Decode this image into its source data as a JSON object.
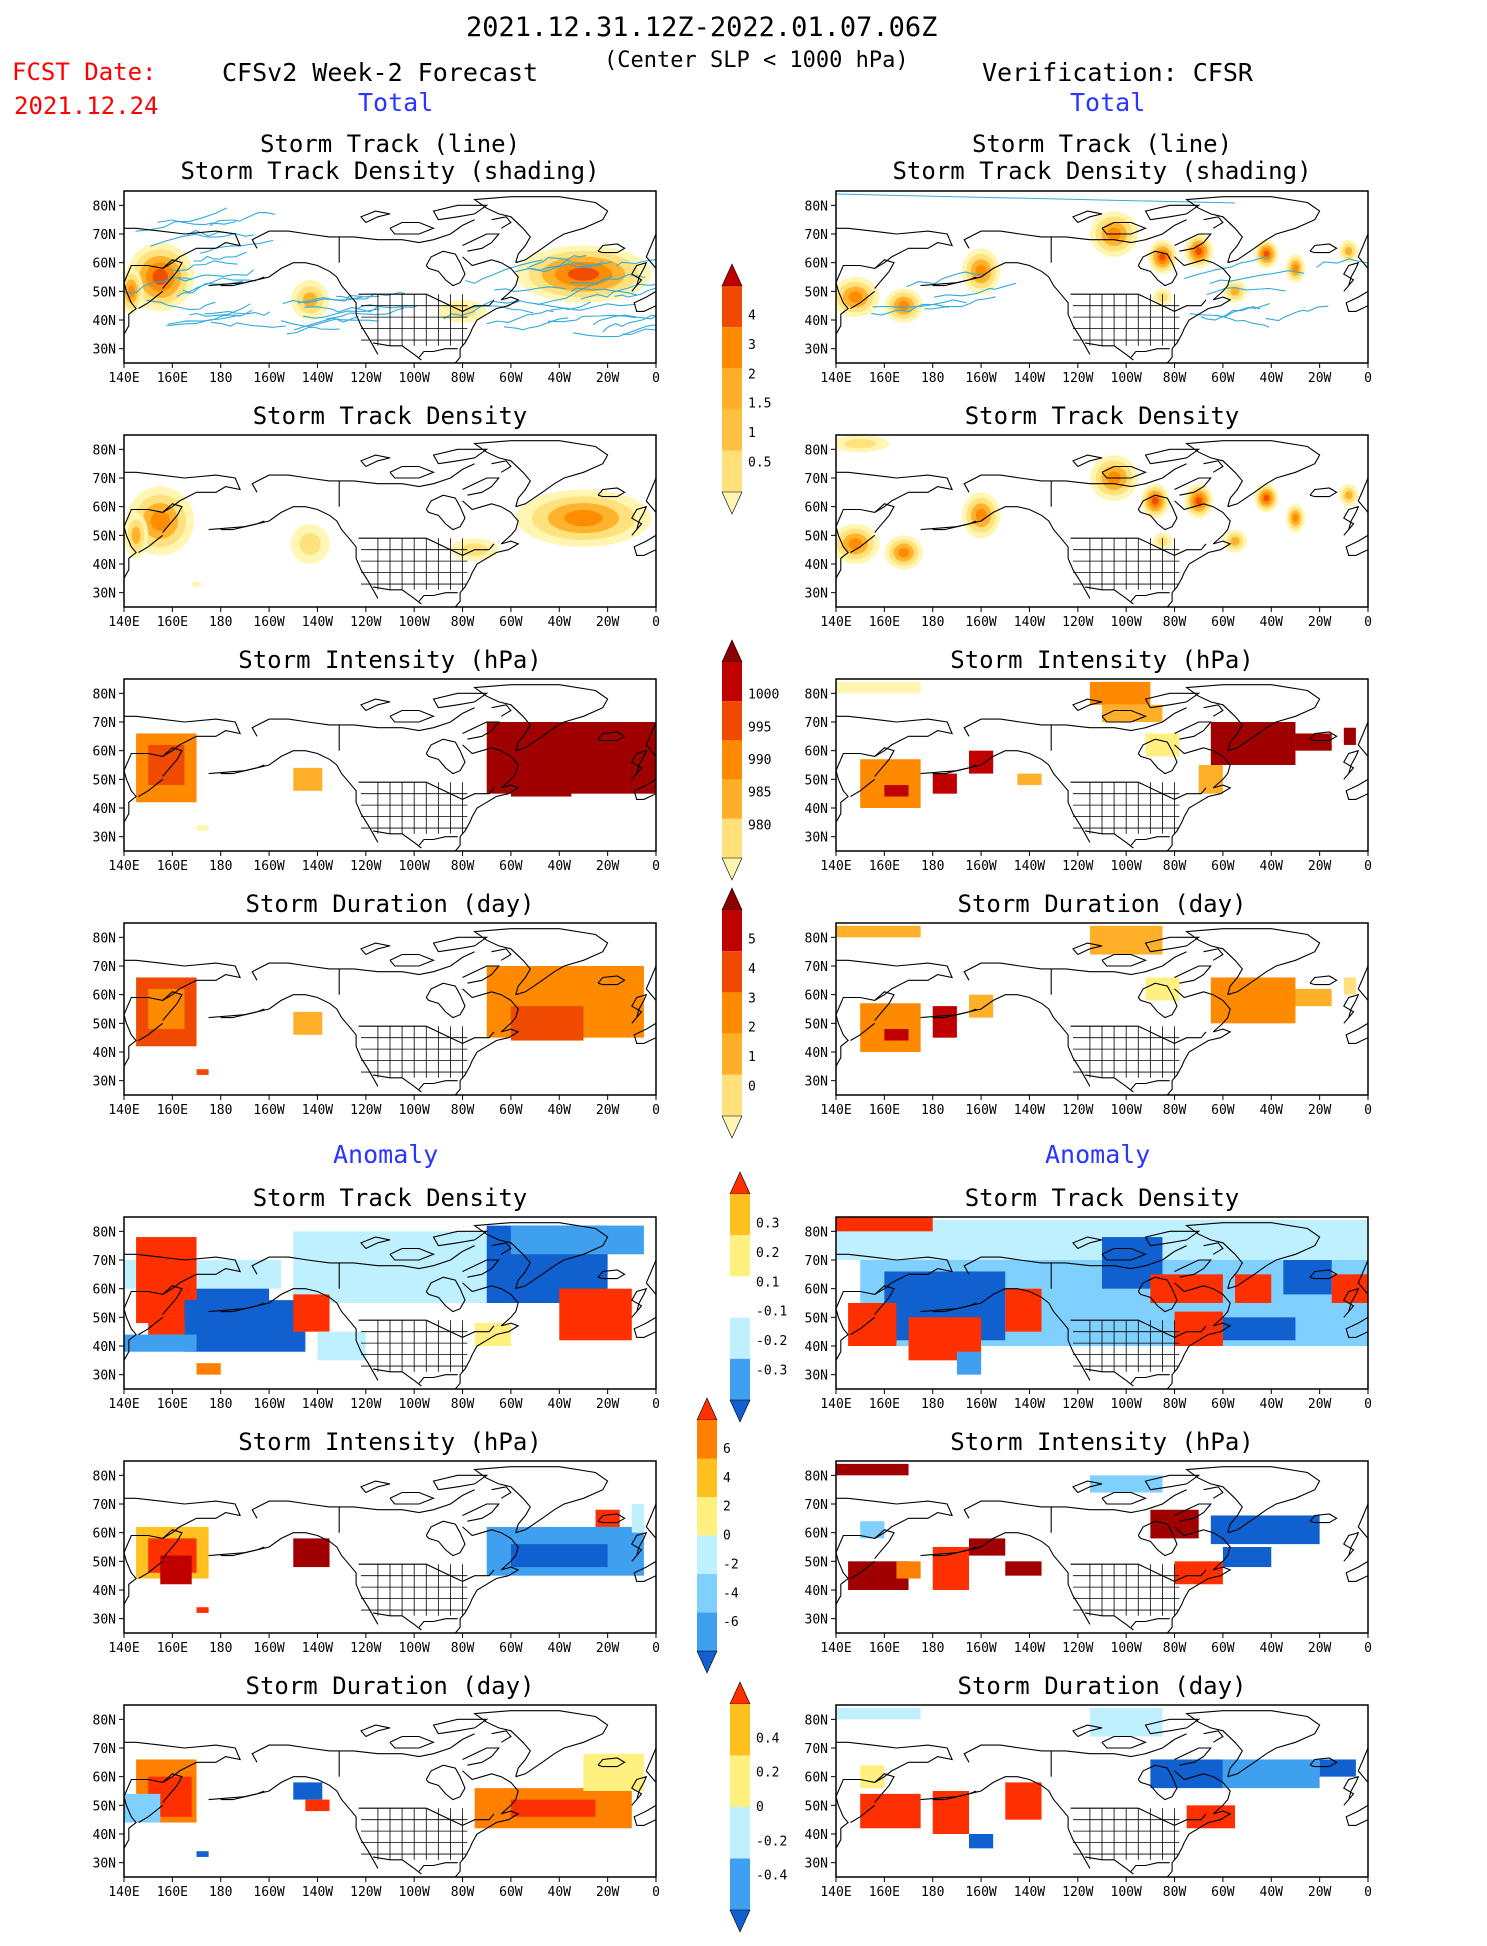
{
  "header": {
    "period": "2021.12.31.12Z-2022.01.07.06Z",
    "criterion": "(Center SLP < 1000 hPa)",
    "fcst_label": "FCST Date:",
    "fcst_date": "2021.12.24",
    "model": "CFSv2 Week-2 Forecast",
    "verification": "Verification: CFSR"
  },
  "sections": {
    "total": "Total",
    "anomaly": "Anomaly"
  },
  "titles": {
    "track_line": "Storm Track (line)",
    "track_shading": "Storm Track Density (shading)",
    "density": "Storm Track Density",
    "intensity": "Storm Intensity (hPa)",
    "duration": "Storm Duration (day)"
  },
  "axes": {
    "lon_ticks": [
      "140E",
      "160E",
      "180",
      "160W",
      "140W",
      "120W",
      "100W",
      "80W",
      "60W",
      "40W",
      "20W",
      "0"
    ],
    "lat_ticks": [
      "80N",
      "70N",
      "60N",
      "50N",
      "40N",
      "30N"
    ]
  },
  "colorbars": {
    "density_total": {
      "labels": [
        "4",
        "3",
        "2",
        "1.5",
        "1",
        "0.5"
      ]
    },
    "intensity_total": {
      "labels": [
        "1000",
        "995",
        "990",
        "985",
        "980"
      ]
    },
    "duration_total": {
      "labels": [
        "5",
        "4",
        "3",
        "2",
        "1",
        "0"
      ]
    },
    "density_anom": {
      "labels": [
        "0.3",
        "0.2",
        "0.1",
        "-0.1",
        "-0.2",
        "-0.3"
      ]
    },
    "intensity_anom": {
      "labels": [
        "6",
        "4",
        "2",
        "0",
        "-2",
        "-4",
        "-6"
      ]
    },
    "duration_anom": {
      "labels": [
        "0.4",
        "0.2",
        "0",
        "-0.2",
        "-0.4"
      ]
    }
  },
  "colors": {
    "shade_levels": [
      "#fff5b0",
      "#ffe07a",
      "#ffb028",
      "#ff8a00",
      "#f04a00",
      "#c00000",
      "#8b0000"
    ],
    "anom_pos": [
      "#fff080",
      "#ffc020",
      "#ff8000",
      "#ff3000"
    ],
    "anom_neg": [
      "#bff0ff",
      "#80d0ff",
      "#3fa0f0",
      "#1060d0"
    ],
    "track_line": "#33aadd",
    "section_label": "#2a35ff",
    "fcst_label": "#ff0000"
  }
}
